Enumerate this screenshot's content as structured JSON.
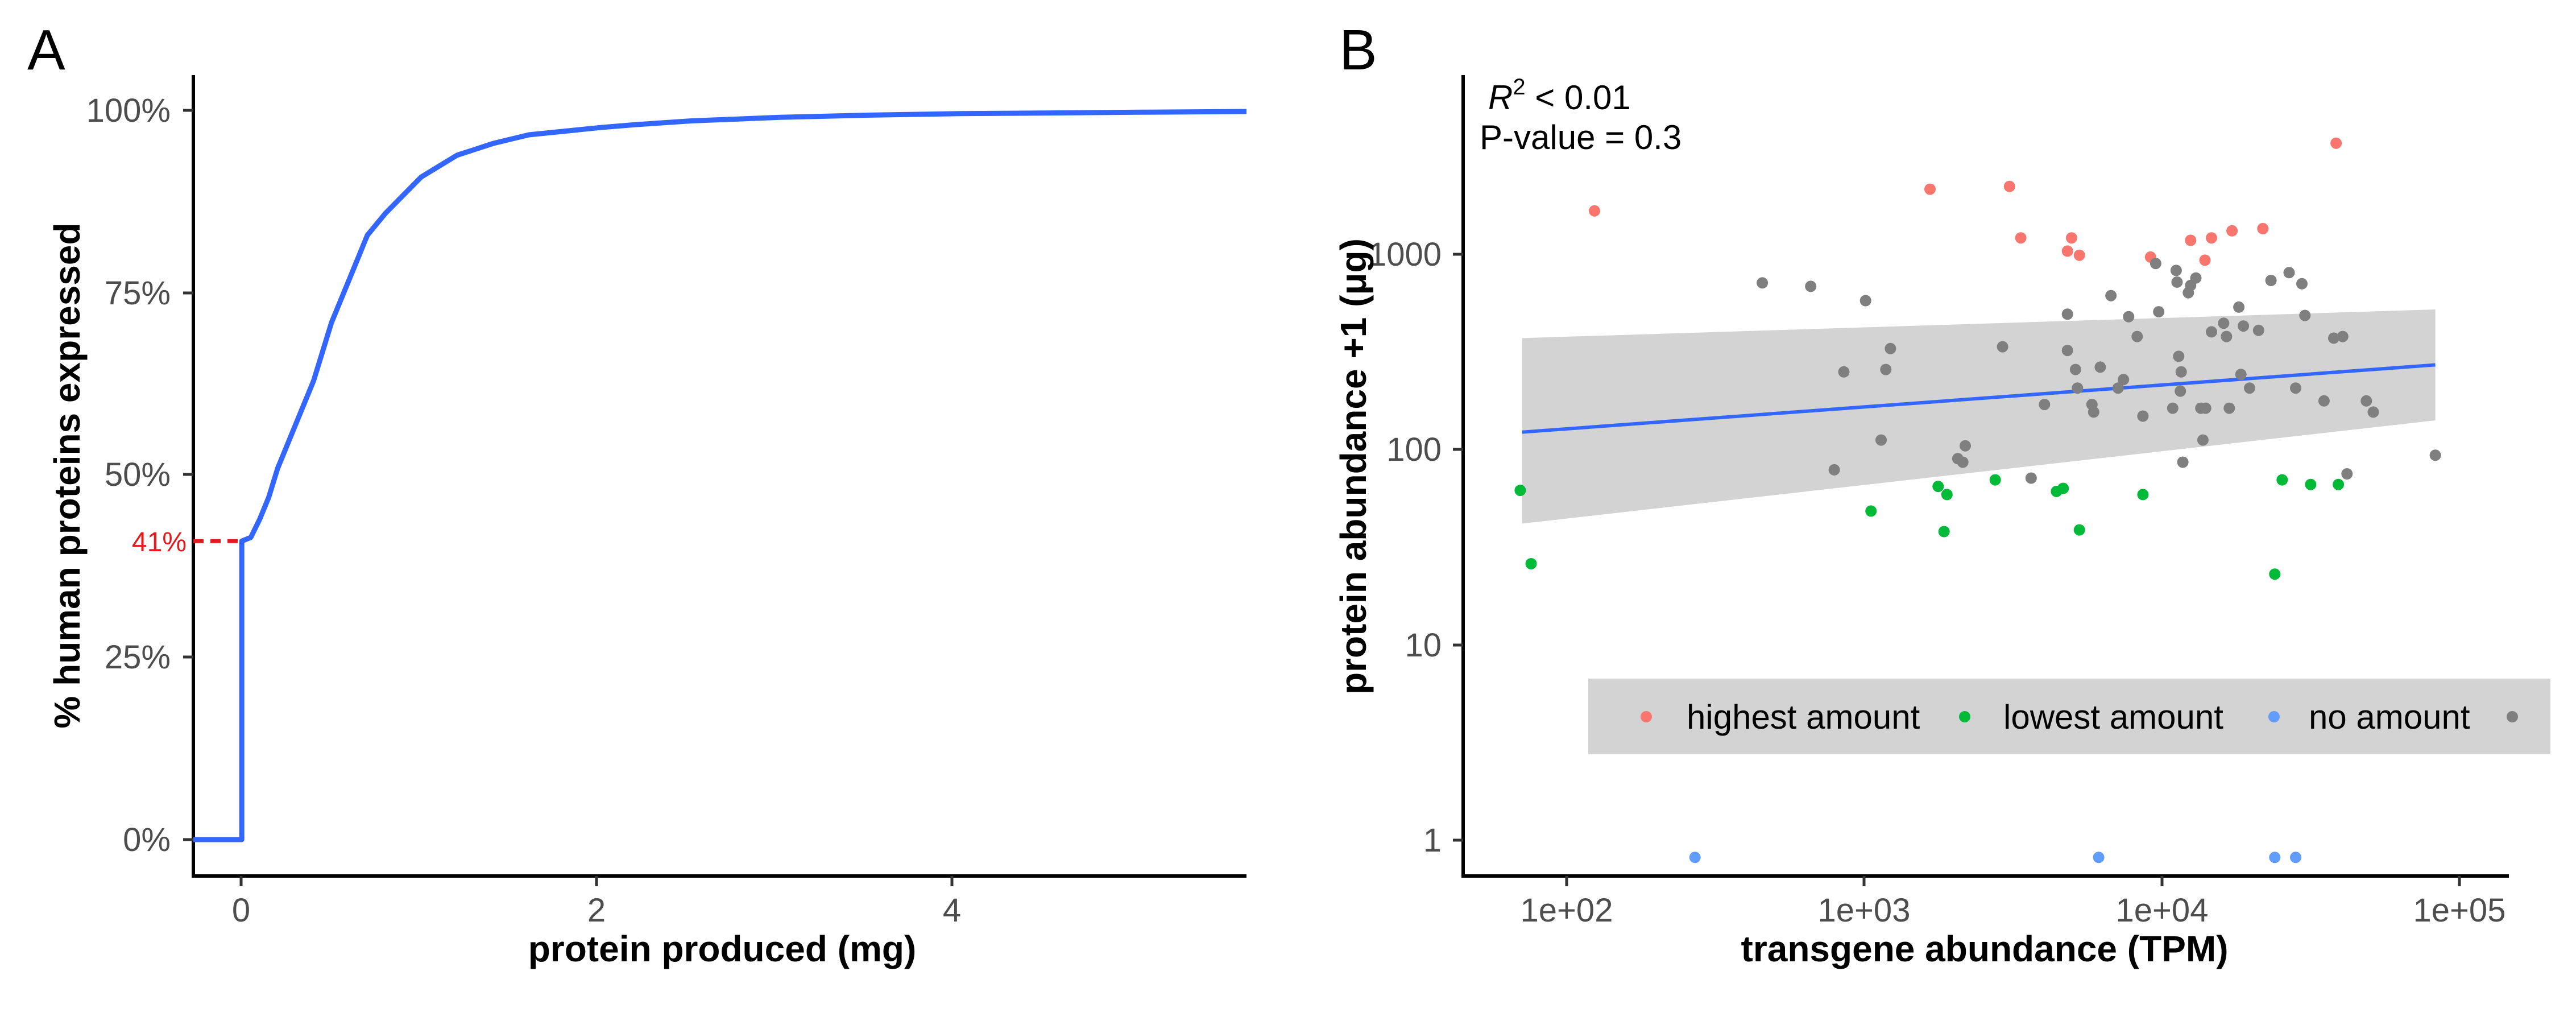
{
  "panels": {
    "a": {
      "letter": "A"
    },
    "b": {
      "letter": "B"
    }
  },
  "colors": {
    "line": "#3366ff",
    "highlight": "#e41a1c",
    "highest": "#f8766d",
    "lowest": "#00ba38",
    "none": "#619cff",
    "other": "#7f7f7f",
    "ribbon": "#d3d3d3",
    "axis": "#000000",
    "tick_text": "#4d4d4d"
  },
  "chart_data": [
    {
      "panel": "A",
      "type": "line",
      "xlabel": "protein produced (mg)",
      "ylabel": "% human proteins expressed",
      "xlim": [
        -0.27,
        5.6
      ],
      "ylim": [
        -5,
        105
      ],
      "x_ticks": [
        0,
        2,
        4
      ],
      "x_tick_labels": [
        "0",
        "2",
        "4"
      ],
      "y_ticks": [
        0,
        25,
        50,
        75,
        100
      ],
      "y_tick_labels": [
        "0%",
        "25%",
        "50%",
        "75%",
        "100%"
      ],
      "series": [
        {
          "x": [
            -0.27,
            0,
            0,
            0.05,
            0.1,
            0.15,
            0.2,
            0.3,
            0.4,
            0.5,
            0.6,
            0.7,
            0.8,
            0.9,
            1.0,
            1.1,
            1.2,
            1.3,
            1.4,
            1.5,
            1.6,
            1.8,
            2.0,
            2.2,
            2.5,
            3.0,
            3.5,
            4.0,
            4.5,
            5.0,
            5.6
          ],
          "y": [
            0,
            0,
            41,
            41.5,
            44,
            47,
            51,
            57,
            63,
            71,
            77,
            83,
            86,
            88.5,
            91,
            92.5,
            94,
            94.8,
            95.6,
            96.2,
            96.8,
            97.3,
            97.8,
            98.2,
            98.7,
            99.2,
            99.5,
            99.7,
            99.8,
            99.9,
            100
          ]
        }
      ],
      "annotation": {
        "label": "41%",
        "y": 41
      }
    },
    {
      "panel": "B",
      "type": "scatter",
      "xlabel": "transgene abundance (TPM)",
      "ylabel": "protein abundance +1 (μg)",
      "x_scale": "log10",
      "y_scale": "log10",
      "xlim": [
        40,
        220000
      ],
      "ylim": [
        0.8,
        12000
      ],
      "x_ticks": [
        100,
        1000,
        10000,
        100000
      ],
      "x_tick_labels": [
        "1e+02",
        "1e+03",
        "1e+04",
        "1e+05"
      ],
      "y_ticks": [
        1,
        10,
        100,
        1000
      ],
      "y_tick_labels": [
        "1",
        "10",
        "100",
        "1000"
      ],
      "stats": {
        "r2_label_main": "R",
        "r2_label_sup": "2",
        "r2_label_rest": " < 0.01",
        "pvalue_label": "P-value = 0.3"
      },
      "legend": {
        "position": "bottom-right",
        "items": [
          {
            "label": "highest amount",
            "color": "#f8766d"
          },
          {
            "label": "lowest amount",
            "color": "#00ba38"
          },
          {
            "label": "no amount",
            "color": "#619cff"
          },
          {
            "label": "",
            "color": "#7f7f7f"
          }
        ]
      },
      "regression": {
        "x": [
          65,
          120000
        ],
        "y": [
          165,
          370
        ],
        "ribbon_lower": [
          55,
          190
        ],
        "ribbon_upper": [
          510,
          720
        ]
      },
      "series": [
        {
          "name": "highest amount",
          "color": "#f8766d",
          "points": [
            [
              118,
              2350
            ],
            [
              1870,
              3050
            ],
            [
              3600,
              3150
            ],
            [
              3950,
              1700
            ],
            [
              5800,
              1450
            ],
            [
              6000,
              1700
            ],
            [
              6400,
              1380
            ],
            [
              11500,
              1350
            ],
            [
              16000,
              1650
            ],
            [
              18000,
              1300
            ],
            [
              19000,
              1700
            ],
            [
              22500,
              1850
            ],
            [
              29000,
              1900
            ],
            [
              53000,
              5300
            ]
          ]
        },
        {
          "name": "lowest amount",
          "color": "#00ba38",
          "points": [
            [
              64,
              82
            ],
            [
              70,
              34
            ],
            [
              1150,
              64
            ],
            [
              2000,
              86
            ],
            [
              2100,
              50
            ],
            [
              2150,
              78
            ],
            [
              3200,
              93
            ],
            [
              5300,
              81
            ],
            [
              5600,
              84
            ],
            [
              6400,
              51
            ],
            [
              10800,
              78
            ],
            [
              32000,
              30
            ],
            [
              34000,
              93
            ],
            [
              43000,
              88
            ],
            [
              54000,
              88
            ]
          ]
        },
        {
          "name": "no amount",
          "color": "#619cff",
          "points": [
            [
              270,
              1
            ],
            [
              7500,
              1
            ],
            [
              32000,
              1
            ],
            [
              38000,
              1
            ]
          ]
        },
        {
          "name": "",
          "color": "#7f7f7f",
          "points": [
            [
              470,
              990
            ],
            [
              700,
              950
            ],
            [
              850,
              105
            ],
            [
              920,
              340
            ],
            [
              1100,
              800
            ],
            [
              1250,
              150
            ],
            [
              1300,
              350
            ],
            [
              1350,
              450
            ],
            [
              2350,
              120
            ],
            [
              2450,
              115
            ],
            [
              2500,
              140
            ],
            [
              3400,
              460
            ],
            [
              4300,
              95
            ],
            [
              4800,
              230
            ],
            [
              5800,
              680
            ],
            [
              5800,
              440
            ],
            [
              6200,
              350
            ],
            [
              6300,
              280
            ],
            [
              7100,
              230
            ],
            [
              7200,
              210
            ],
            [
              7600,
              360
            ],
            [
              8300,
              850
            ],
            [
              8800,
              280
            ],
            [
              9200,
              310
            ],
            [
              9600,
              660
            ],
            [
              10300,
              520
            ],
            [
              10800,
              200
            ],
            [
              12000,
              1250
            ],
            [
              12300,
              700
            ],
            [
              13800,
              220
            ],
            [
              14200,
              1150
            ],
            [
              14300,
              1000
            ],
            [
              14500,
              410
            ],
            [
              14700,
              270
            ],
            [
              14800,
              340
            ],
            [
              15000,
              115
            ],
            [
              15700,
              880
            ],
            [
              16000,
              960
            ],
            [
              16700,
              1050
            ],
            [
              17400,
              220
            ],
            [
              17700,
              150
            ],
            [
              18100,
              220
            ],
            [
              19000,
              550
            ],
            [
              21000,
              610
            ],
            [
              21500,
              520
            ],
            [
              22000,
              220
            ],
            [
              23800,
              740
            ],
            [
              24200,
              330
            ],
            [
              24700,
              590
            ],
            [
              26000,
              280
            ],
            [
              28000,
              560
            ],
            [
              31000,
              1020
            ],
            [
              36000,
              1120
            ],
            [
              38000,
              280
            ],
            [
              40000,
              980
            ],
            [
              41000,
              670
            ],
            [
              48000,
              240
            ],
            [
              52000,
              510
            ],
            [
              56000,
              520
            ],
            [
              58000,
              100
            ],
            [
              68000,
              240
            ],
            [
              72000,
              210
            ],
            [
              120000,
              125
            ]
          ]
        }
      ]
    }
  ]
}
